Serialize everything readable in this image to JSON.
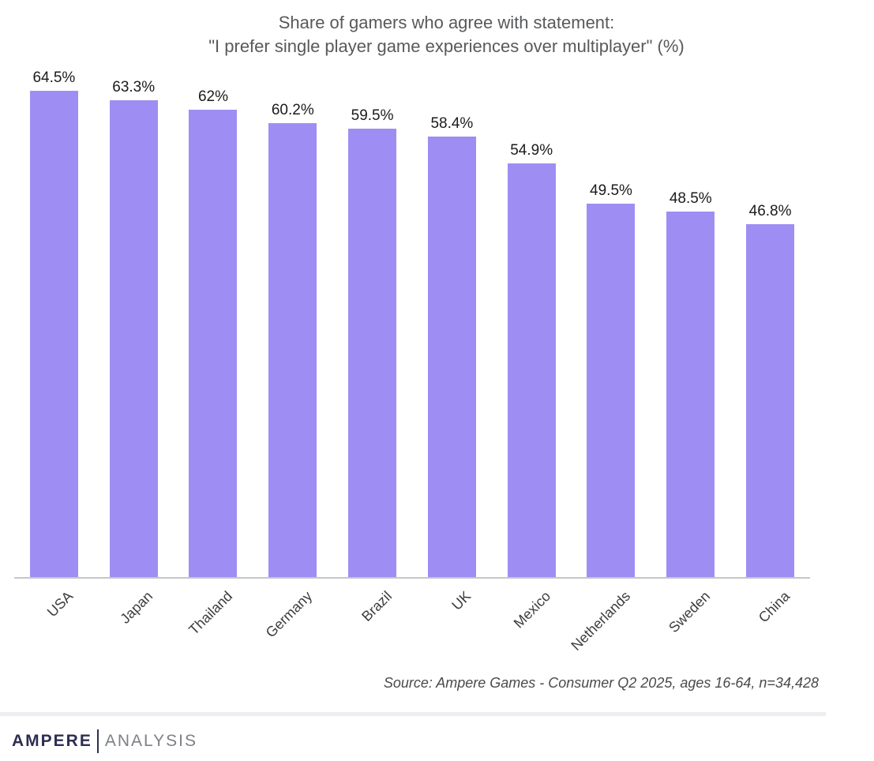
{
  "title": {
    "line1": "Share of gamers who agree with statement:",
    "line2": "\"I prefer single player game experiences over multiplayer\" (%)"
  },
  "chart_data": {
    "type": "bar",
    "title": "Share of gamers who agree with statement: \"I prefer single player game experiences over multiplayer\" (%)",
    "categories": [
      "USA",
      "Japan",
      "Thailand",
      "Germany",
      "Brazil",
      "UK",
      "Mexico",
      "Netherlands",
      "Sweden",
      "China"
    ],
    "values": [
      64.5,
      63.3,
      62,
      60.2,
      59.5,
      58.4,
      54.9,
      49.5,
      48.5,
      46.8
    ],
    "labels": [
      "64.5%",
      "63.3%",
      "62%",
      "60.2%",
      "59.5%",
      "58.4%",
      "54.9%",
      "49.5%",
      "48.5%",
      "46.8%"
    ],
    "xlabel": "",
    "ylabel": "",
    "ylim": [
      0,
      67.5
    ],
    "grid": false,
    "legend": false,
    "bar_color": "#9e8ef3",
    "value_label_position": "above-bar",
    "x_tick_rotation": -45
  },
  "source": "Source: Ampere Games - Consumer Q2 2025, ages 16-64, n=34,428",
  "logo": {
    "primary": "AMPERE",
    "secondary": "ANALYSIS"
  },
  "colors": {
    "bar": "#9e8ef3",
    "title_text": "#58595b",
    "value_label_text": "#1b1b1b",
    "axis_label_text": "#3d3d3d",
    "source_text": "#4a4a4a",
    "axis_line": "#c6c6c6",
    "divider": "#ededf2",
    "logo_primary": "#2d2e52",
    "logo_secondary": "#7e8086"
  }
}
